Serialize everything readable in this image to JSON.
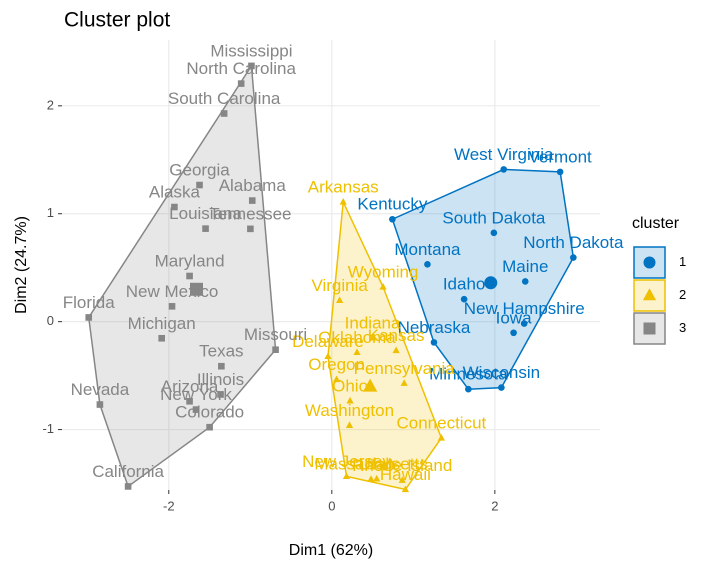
{
  "chart_data": {
    "type": "scatter",
    "title": "Cluster plot",
    "x_label": "Dim1 (62%)",
    "y_label": "Dim2 (24.7%)",
    "legend_title": "cluster",
    "xlim": [
      -3.31,
      3.29
    ],
    "ylim": [
      -1.56,
      2.61
    ],
    "xticks": [
      -2,
      0,
      2
    ],
    "yticks": [
      -1,
      0,
      1,
      2
    ],
    "grid": true,
    "series": [
      {
        "name": "1",
        "color": "#0073C2",
        "marker": "circle",
        "labels": [
          "Idaho",
          "Iowa",
          "Kentucky",
          "Maine",
          "Minnesota",
          "Montana",
          "Nebraska",
          "New Hampshire",
          "North Dakota",
          "South Dakota",
          "Vermont",
          "West Virginia",
          "Wisconsin"
        ],
        "x": [
          1.623,
          2.23,
          0.743,
          2.373,
          1.675,
          1.173,
          1.253,
          2.36,
          2.963,
          1.988,
          2.801,
          2.109,
          2.08
        ],
        "values": [
          0.208,
          -0.103,
          0.949,
          0.373,
          -0.626,
          0.531,
          -0.192,
          -0.018,
          0.594,
          0.823,
          1.388,
          1.411,
          -0.611
        ],
        "center": [
          1.95,
          0.36
        ]
      },
      {
        "name": "2",
        "color": "#EFC000",
        "marker": "triangle",
        "labels": [
          "Arkansas",
          "Connecticut",
          "Delaware",
          "Hawaii",
          "Indiana",
          "Kansas",
          "Massachusetts",
          "New Jersey",
          "Ohio",
          "Oklahoma",
          "Oregon",
          "Pennsylvania",
          "Rhode Island",
          "Utah",
          "Virginia",
          "Washington",
          "Wyoming"
        ],
        "x": [
          0.14,
          1.344,
          -0.047,
          0.903,
          0.5,
          0.789,
          0.481,
          0.18,
          0.224,
          0.309,
          0.059,
          0.888,
          0.864,
          0.551,
          0.096,
          0.217,
          0.629
        ],
        "values": [
          1.109,
          -1.078,
          -0.322,
          -1.555,
          -0.15,
          -0.267,
          -1.46,
          -1.434,
          -0.734,
          -0.285,
          -0.536,
          -0.571,
          -1.47,
          -1.457,
          0.197,
          -0.961,
          0.321
        ],
        "center": [
          0.47,
          -0.6
        ]
      },
      {
        "name": "3",
        "color": "#868686",
        "marker": "square",
        "labels": [
          "Alabama",
          "Alaska",
          "Arizona",
          "California",
          "Colorado",
          "Florida",
          "Georgia",
          "Illinois",
          "Louisiana",
          "Maryland",
          "Michigan",
          "Mississippi",
          "Missouri",
          "Nevada",
          "New Mexico",
          "New York",
          "North Carolina",
          "South Carolina",
          "Tennessee",
          "Texas"
        ],
        "x": [
          -0.976,
          -1.931,
          -1.745,
          -2.499,
          -1.499,
          -2.982,
          -1.623,
          -1.365,
          -1.549,
          -1.745,
          -2.087,
          -0.986,
          -0.69,
          -2.845,
          -1.96,
          -1.666,
          -1.112,
          -1.321,
          -0.999,
          -1.355
        ],
        "values": [
          1.122,
          1.062,
          -0.738,
          -1.527,
          -0.978,
          0.039,
          1.266,
          -0.675,
          0.862,
          0.423,
          -0.154,
          2.37,
          -0.26,
          -0.768,
          0.142,
          -0.815,
          2.206,
          1.929,
          0.86,
          -0.413
        ],
        "center": [
          -1.66,
          0.3
        ]
      }
    ]
  }
}
